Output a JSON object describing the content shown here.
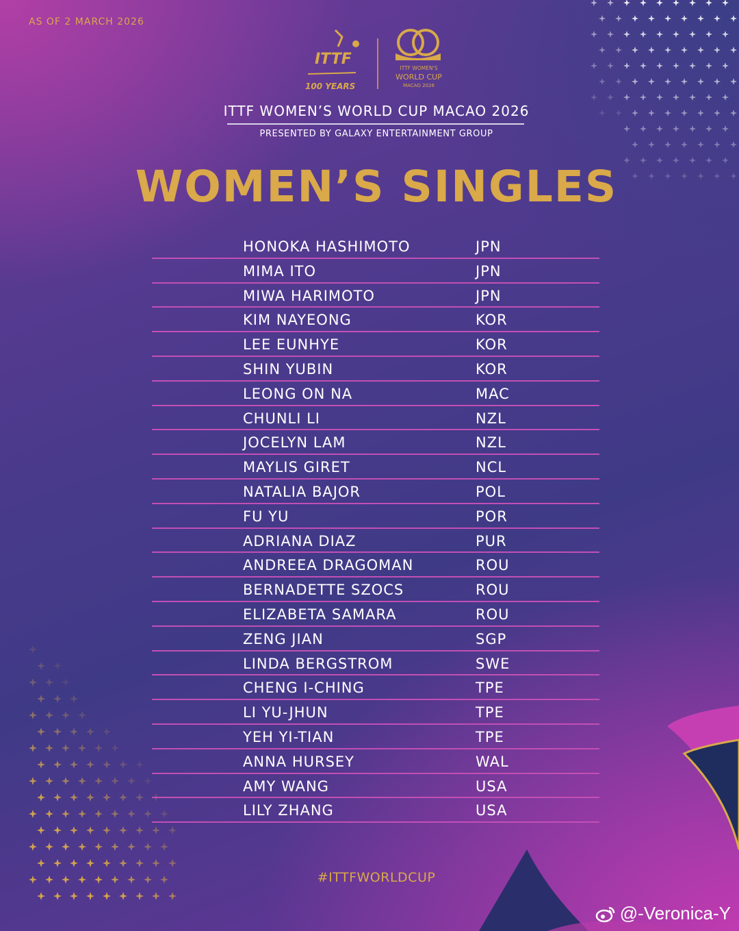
{
  "header": {
    "as_of": "AS OF 2 MARCH 2026",
    "ittf_logo": "ITTF 100 YEARS",
    "event_logo": "ITTF WOMEN'S WORLD CUP MACAO 2026",
    "event_title": "ITTF WOMEN’S WORLD CUP MACAO 2026",
    "presented_by": "PRESENTED BY GALAXY ENTERTAINMENT GROUP"
  },
  "heading": "WOMEN’S SINGLES",
  "players": [
    {
      "name": "HONOKA HASHIMOTO",
      "country": "JPN"
    },
    {
      "name": "MIMA ITO",
      "country": "JPN"
    },
    {
      "name": "MIWA HARIMOTO",
      "country": "JPN"
    },
    {
      "name": "KIM NAYEONG",
      "country": "KOR"
    },
    {
      "name": "LEE EUNHYE",
      "country": "KOR"
    },
    {
      "name": "SHIN YUBIN",
      "country": "KOR"
    },
    {
      "name": "LEONG ON NA",
      "country": "MAC"
    },
    {
      "name": "CHUNLI LI",
      "country": "NZL"
    },
    {
      "name": "JOCELYN LAM",
      "country": "NZL"
    },
    {
      "name": "MAYLIS GIRET",
      "country": "NCL"
    },
    {
      "name": "NATALIA BAJOR",
      "country": "POL"
    },
    {
      "name": "FU YU",
      "country": "POR"
    },
    {
      "name": "ADRIANA DIAZ",
      "country": "PUR"
    },
    {
      "name": "ANDREEA DRAGOMAN",
      "country": "ROU"
    },
    {
      "name": "BERNADETTE SZOCS",
      "country": "ROU"
    },
    {
      "name": "ELIZABETA SAMARA",
      "country": "ROU"
    },
    {
      "name": "ZENG JIAN",
      "country": "SGP"
    },
    {
      "name": "LINDA BERGSTROM",
      "country": "SWE"
    },
    {
      "name": "CHENG I-CHING",
      "country": "TPE"
    },
    {
      "name": "LI YU-JHUN",
      "country": "TPE"
    },
    {
      "name": "YEH YI-TIAN",
      "country": "TPE"
    },
    {
      "name": "ANNA HURSEY",
      "country": "WAL"
    },
    {
      "name": "AMY WANG",
      "country": "USA"
    },
    {
      "name": "LILY ZHANG",
      "country": "USA"
    }
  ],
  "footer": {
    "hashtag": "#ITTFWORLDCUP",
    "watermark": "@-Veronica-Y",
    "watermark_icon": "weibo-icon"
  },
  "colors": {
    "gold": "#d9a94a",
    "row_rule": "#c24fb5",
    "text": "#ffffff"
  }
}
